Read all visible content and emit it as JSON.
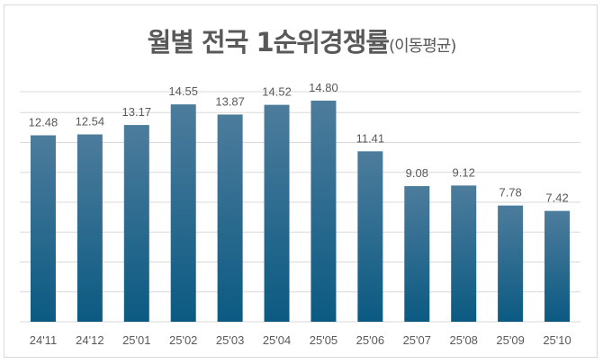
{
  "chart_data": {
    "type": "bar",
    "title": "월별 전국 1순위경쟁률",
    "subtitle": "(이동평균)",
    "categories": [
      "24'11",
      "24'12",
      "25'01",
      "25'02",
      "25'03",
      "25'04",
      "25'05",
      "25'06",
      "25'07",
      "25'08",
      "25'09",
      "25'10"
    ],
    "values": [
      12.48,
      12.54,
      13.17,
      14.55,
      13.87,
      14.52,
      14.8,
      11.41,
      9.08,
      9.12,
      7.78,
      7.42
    ],
    "value_labels": [
      "12.48",
      "12.54",
      "13.17",
      "14.55",
      "13.87",
      "14.52",
      "14.80",
      "11.41",
      "9.08",
      "9.12",
      "7.78",
      "7.42"
    ],
    "xlabel": "",
    "ylabel": "",
    "ylim": [
      0,
      15.4
    ],
    "grid_step": 2,
    "grid": true,
    "legend": "none",
    "colors": {
      "bar_top": "#4d7c9c",
      "bar_bottom": "#0b5a82",
      "grid": "#d9d9d9",
      "text": "#595959"
    }
  }
}
